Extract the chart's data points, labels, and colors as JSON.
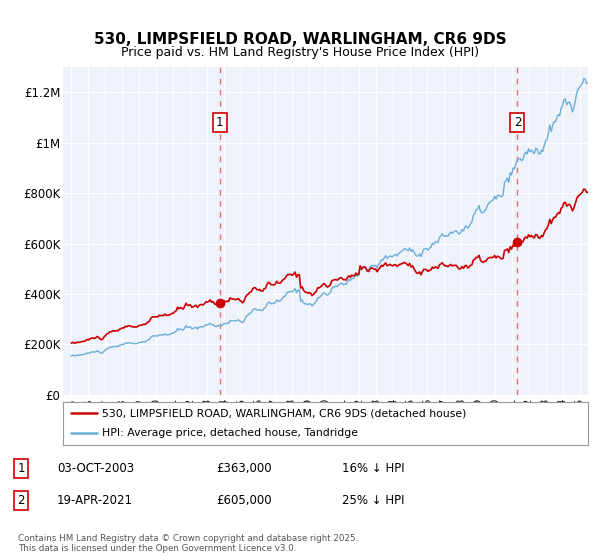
{
  "title": "530, LIMPSFIELD ROAD, WARLINGHAM, CR6 9DS",
  "subtitle": "Price paid vs. HM Land Registry's House Price Index (HPI)",
  "legend_line1": "530, LIMPSFIELD ROAD, WARLINGHAM, CR6 9DS (detached house)",
  "legend_line2": "HPI: Average price, detached house, Tandridge",
  "annotation1_date": "03-OCT-2003",
  "annotation1_price": "£363,000",
  "annotation1_hpi": "16% ↓ HPI",
  "annotation2_date": "19-APR-2021",
  "annotation2_price": "£605,000",
  "annotation2_hpi": "25% ↓ HPI",
  "hpi_color": "#6baed6",
  "price_color": "#cc0000",
  "dot_color": "#cc0000",
  "vline_color": "#e87070",
  "background_color": "#eef2fb",
  "ylim": [
    0,
    1300000
  ],
  "xlim": [
    1994.5,
    2025.5
  ],
  "footer": "Contains HM Land Registry data © Crown copyright and database right 2025.\nThis data is licensed under the Open Government Licence v3.0."
}
